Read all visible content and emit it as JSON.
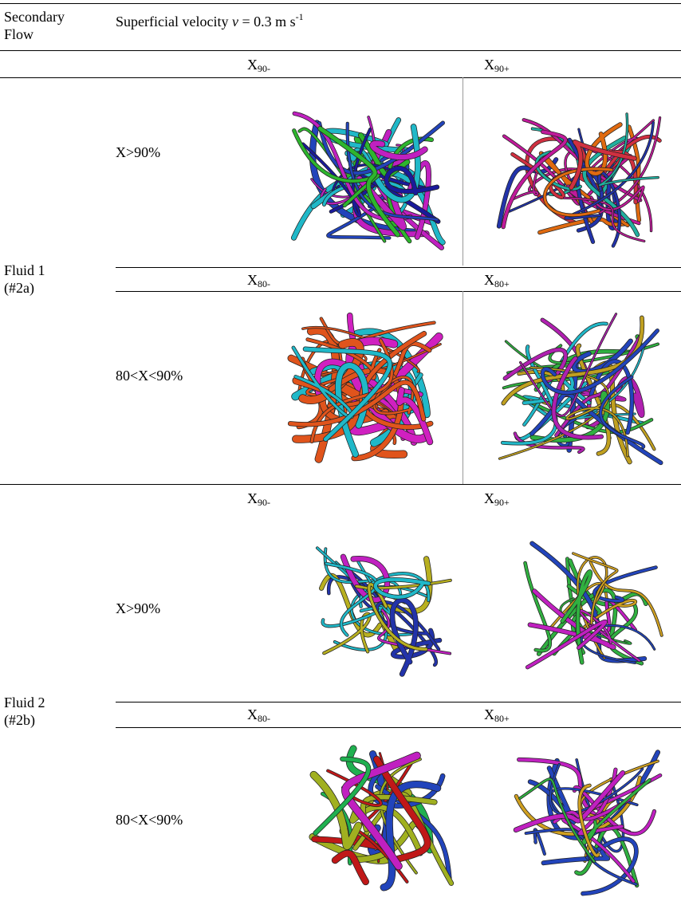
{
  "header": {
    "first_column": "Secondary Flow",
    "velocity": {
      "text": "Superficial velocity ",
      "symbol": "v",
      "rest": " = 0.3 m s",
      "exponent": "-1"
    }
  },
  "sections": [
    {
      "fluid": "Fluid 1",
      "code": "(#2a)",
      "rows": [
        {
          "label": "X>90%",
          "left": {
            "base": "X",
            "sub": "90-"
          },
          "right": {
            "base": "X",
            "sub": "90+"
          }
        },
        {
          "label": "80<X<90%",
          "left": {
            "base": "X",
            "sub": "80-"
          },
          "right": {
            "base": "X",
            "sub": "80+"
          }
        }
      ]
    },
    {
      "fluid": "Fluid 2",
      "code": "(#2b)",
      "rows": [
        {
          "label": "X>90%",
          "left": {
            "base": "X",
            "sub": "90-"
          },
          "right": {
            "base": "X",
            "sub": "90+"
          }
        },
        {
          "label": "80<X<90%",
          "left": {
            "base": "X",
            "sub": "80-"
          },
          "right": {
            "base": "X",
            "sub": "80+"
          }
        }
      ]
    }
  ]
}
